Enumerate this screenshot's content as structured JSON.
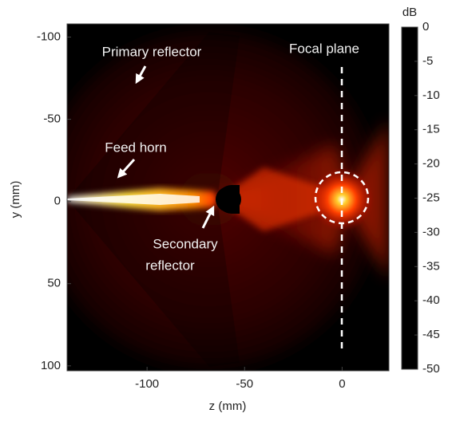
{
  "chart_data": {
    "type": "heatmap",
    "xlabel": "z (mm)",
    "ylabel": "y (mm)",
    "xlim": [
      -141,
      24
    ],
    "xticks": [
      -100,
      -50,
      0
    ],
    "ylim": [
      -108,
      103
    ],
    "y_reversed": true,
    "yticks": [
      -100,
      -50,
      0,
      50,
      100
    ],
    "colorbar": {
      "label": "dB",
      "lim": [
        -50,
        0
      ],
      "ticks": [
        0,
        -5,
        -10,
        -15,
        -20,
        -25,
        -30,
        -35,
        -40,
        -45,
        -50
      ],
      "colormap": [
        "#000000",
        "#5a0000",
        "#c00000",
        "#ff3000",
        "#ff9a00",
        "#ffe030",
        "#ffffff"
      ]
    },
    "annotations": [
      {
        "text": "Primary reflector"
      },
      {
        "text": "Feed horn"
      },
      {
        "text": "Secondary"
      },
      {
        "text": "reflector"
      },
      {
        "text": "Focal plane"
      }
    ]
  }
}
